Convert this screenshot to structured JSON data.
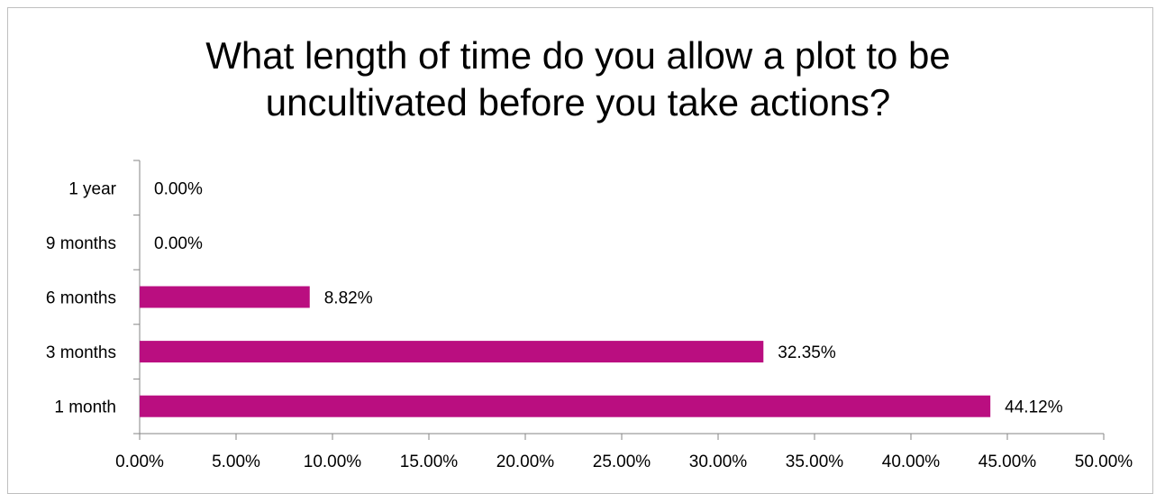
{
  "chart_data": {
    "type": "bar",
    "orientation": "horizontal",
    "title": "What length of time do you allow a plot to be uncultivated before you take actions?",
    "title_lines": [
      "What length of time do you allow a plot to be",
      "uncultivated before you take actions?"
    ],
    "categories": [
      "1 year",
      "9 months",
      "6 months",
      "3 months",
      "1 month"
    ],
    "values": [
      0.0,
      0.0,
      8.82,
      32.35,
      44.12
    ],
    "data_labels": [
      "0.00%",
      "0.00%",
      "8.82%",
      "32.35%",
      "44.12%"
    ],
    "xlim": [
      0,
      50
    ],
    "x_ticks": [
      0,
      5,
      10,
      15,
      20,
      25,
      30,
      35,
      40,
      45,
      50
    ],
    "x_tick_labels": [
      "0.00%",
      "5.00%",
      "10.00%",
      "15.00%",
      "20.00%",
      "25.00%",
      "30.00%",
      "35.00%",
      "40.00%",
      "45.00%",
      "50.00%"
    ],
    "xlabel": "",
    "ylabel": "",
    "grid": false,
    "legend": "none",
    "bar_color": "#BA0E80"
  }
}
